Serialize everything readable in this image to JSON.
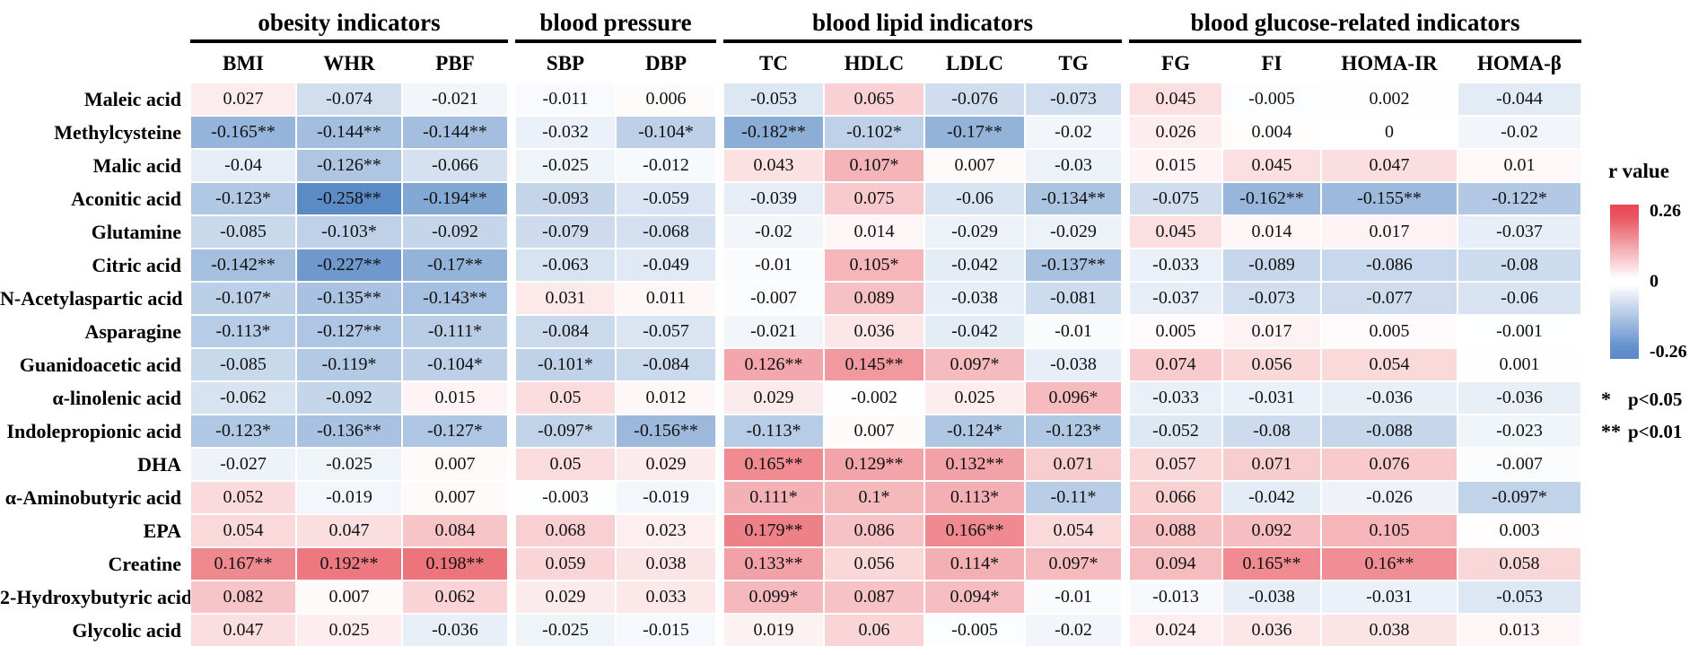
{
  "chart_data": {
    "type": "heatmap",
    "column_groups": [
      {
        "label": "obesity indicators",
        "columns": [
          "BMI",
          "WHR",
          "PBF"
        ]
      },
      {
        "label": "blood pressure",
        "columns": [
          "SBP",
          "DBP"
        ]
      },
      {
        "label": "blood lipid indicators",
        "columns": [
          "TC",
          "HDLC",
          "LDLC",
          "TG"
        ]
      },
      {
        "label": "blood glucose-related indicators",
        "columns": [
          "FG",
          "FI",
          "HOMA-IR",
          "HOMA-β"
        ]
      }
    ],
    "rows": [
      {
        "label": "Maleic acid",
        "values": [
          "0.027",
          "-0.074",
          "-0.021",
          "-0.011",
          "0.006",
          "-0.053",
          "0.065",
          "-0.076",
          "-0.073",
          "0.045",
          "-0.005",
          "0.002",
          "-0.044"
        ]
      },
      {
        "label": "Methylcysteine",
        "values": [
          "-0.165**",
          "-0.144**",
          "-0.144**",
          "-0.032",
          "-0.104*",
          "-0.182**",
          "-0.102*",
          "-0.17**",
          "-0.02",
          "0.026",
          "0.004",
          "0",
          "-0.02"
        ]
      },
      {
        "label": "Malic acid",
        "values": [
          "-0.04",
          "-0.126**",
          "-0.066",
          "-0.025",
          "-0.012",
          "0.043",
          "0.107*",
          "0.007",
          "-0.03",
          "0.015",
          "0.045",
          "0.047",
          "0.01"
        ]
      },
      {
        "label": "Aconitic acid",
        "values": [
          "-0.123*",
          "-0.258**",
          "-0.194**",
          "-0.093",
          "-0.059",
          "-0.039",
          "0.075",
          "-0.06",
          "-0.134**",
          "-0.075",
          "-0.162**",
          "-0.155**",
          "-0.122*"
        ]
      },
      {
        "label": "Glutamine",
        "values": [
          "-0.085",
          "-0.103*",
          "-0.092",
          "-0.079",
          "-0.068",
          "-0.02",
          "0.014",
          "-0.029",
          "-0.029",
          "0.045",
          "0.014",
          "0.017",
          "-0.037"
        ]
      },
      {
        "label": "Citric acid",
        "values": [
          "-0.142**",
          "-0.227**",
          "-0.17**",
          "-0.063",
          "-0.049",
          "-0.01",
          "0.105*",
          "-0.042",
          "-0.137**",
          "-0.033",
          "-0.089",
          "-0.086",
          "-0.08"
        ]
      },
      {
        "label": "N-Acetylaspartic acid",
        "values": [
          "-0.107*",
          "-0.135**",
          "-0.143**",
          "0.031",
          "0.011",
          "-0.007",
          "0.089",
          "-0.038",
          "-0.081",
          "-0.037",
          "-0.073",
          "-0.077",
          "-0.06"
        ]
      },
      {
        "label": "Asparagine",
        "values": [
          "-0.113*",
          "-0.127**",
          "-0.111*",
          "-0.084",
          "-0.057",
          "-0.021",
          "0.036",
          "-0.042",
          "-0.01",
          "0.005",
          "0.017",
          "0.005",
          "-0.001"
        ]
      },
      {
        "label": "Guanidoacetic acid",
        "values": [
          "-0.085",
          "-0.119*",
          "-0.104*",
          "-0.101*",
          "-0.084",
          "0.126**",
          "0.145**",
          "0.097*",
          "-0.038",
          "0.074",
          "0.056",
          "0.054",
          "0.001"
        ]
      },
      {
        "label": "α-linolenic acid",
        "values": [
          "-0.062",
          "-0.092",
          "0.015",
          "0.05",
          "0.012",
          "0.029",
          "-0.002",
          "0.025",
          "0.096*",
          "-0.033",
          "-0.031",
          "-0.036",
          "-0.036"
        ]
      },
      {
        "label": "Indolepropionic acid",
        "values": [
          "-0.123*",
          "-0.136**",
          "-0.127*",
          "-0.097*",
          "-0.156**",
          "-0.113*",
          "0.007",
          "-0.124*",
          "-0.123*",
          "-0.052",
          "-0.08",
          "-0.088",
          "-0.023"
        ]
      },
      {
        "label": "DHA",
        "values": [
          "-0.027",
          "-0.025",
          "0.007",
          "0.05",
          "0.029",
          "0.165**",
          "0.129**",
          "0.132**",
          "0.071",
          "0.057",
          "0.071",
          "0.076",
          "-0.007"
        ]
      },
      {
        "label": "α-Aminobutyric acid",
        "values": [
          "0.052",
          "-0.019",
          "0.007",
          "-0.003",
          "-0.019",
          "0.111*",
          "0.1*",
          "0.113*",
          "-0.11*",
          "0.066",
          "-0.042",
          "-0.026",
          "-0.097*"
        ]
      },
      {
        "label": "EPA",
        "values": [
          "0.054",
          "0.047",
          "0.084",
          "0.068",
          "0.023",
          "0.179**",
          "0.086",
          "0.166**",
          "0.054",
          "0.088",
          "0.092",
          "0.105",
          "0.003"
        ]
      },
      {
        "label": "Creatine",
        "values": [
          "0.167**",
          "0.192**",
          "0.198**",
          "0.059",
          "0.038",
          "0.133**",
          "0.056",
          "0.114*",
          "0.097*",
          "0.094",
          "0.165**",
          "0.16**",
          "0.058"
        ]
      },
      {
        "label": "2-Hydroxybutyric acid",
        "values": [
          "0.082",
          "0.007",
          "0.062",
          "0.029",
          "0.033",
          "0.099*",
          "0.087",
          "0.094*",
          "-0.01",
          "-0.013",
          "-0.038",
          "-0.031",
          "-0.053"
        ]
      },
      {
        "label": "Glycolic acid",
        "values": [
          "0.047",
          "0.025",
          "-0.036",
          "-0.025",
          "-0.015",
          "0.019",
          "0.06",
          "-0.005",
          "-0.02",
          "0.024",
          "0.036",
          "0.038",
          "0.013"
        ]
      }
    ],
    "legend": {
      "title": "r value",
      "max_label": "0.26",
      "mid_label": "0",
      "min_label": "-0.26",
      "significance": [
        {
          "marker": "*",
          "text": "p<0.05"
        },
        {
          "marker": "**",
          "text": "p<0.01"
        }
      ]
    },
    "scale_max": 0.26,
    "colors": {
      "positive_max": "#e64852",
      "negative_max": "#5a8ac5",
      "zero": "#ffffff"
    }
  }
}
